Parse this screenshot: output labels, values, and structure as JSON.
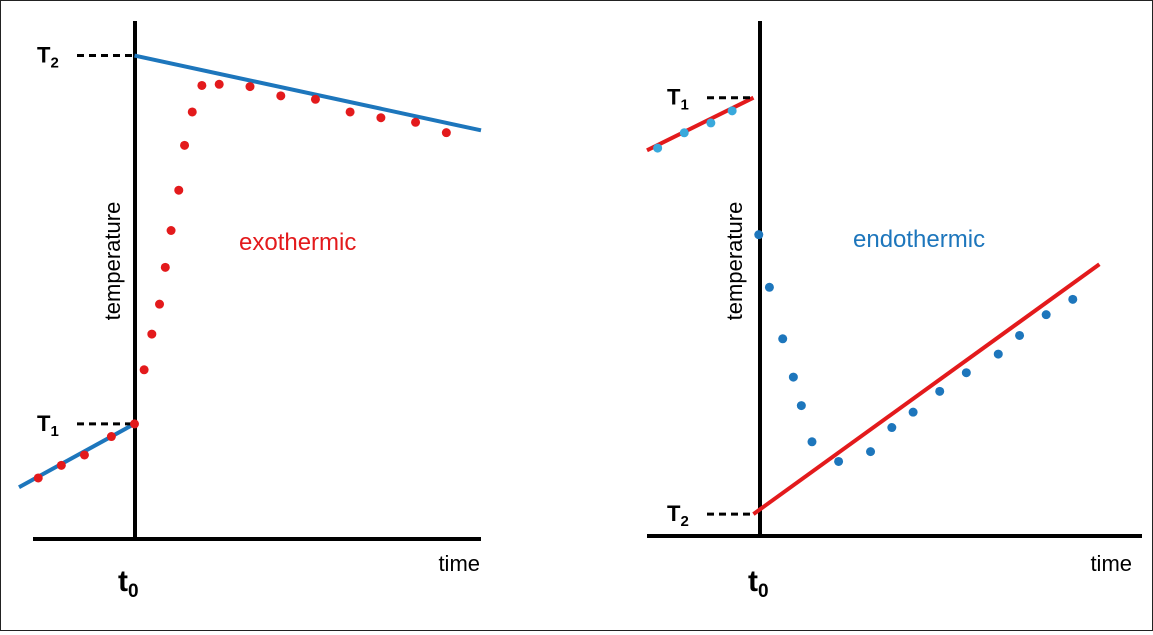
{
  "colors": {
    "blue": "#1d76bc",
    "red": "#e31a1c",
    "light_blue": "#39a9dc"
  },
  "chart_data": [
    {
      "type": "scatter",
      "annotation": "exothermic",
      "annotation_color": "#e31a1c",
      "ylabel": "temperature",
      "xlabel": "time",
      "x_tick_label": {
        "main": "t",
        "sub": "0"
      },
      "xlim": [
        -3,
        9
      ],
      "ylim": [
        -2,
        43
      ],
      "level_labels": [
        {
          "main": "T",
          "sub": "1",
          "y": 8
        },
        {
          "main": "T",
          "sub": "2",
          "y": 40
        }
      ],
      "fit_lines": [
        {
          "color": "#1d76bc",
          "points": [
            [
              -3,
              2.5
            ],
            [
              0,
              8
            ]
          ]
        },
        {
          "color": "#1d76bc",
          "points": [
            [
              0,
              40
            ],
            [
              9,
              33.5
            ]
          ]
        }
      ],
      "points_color": "#e31a1c",
      "points": [
        [
          -2.5,
          3.3
        ],
        [
          -1.9,
          4.4
        ],
        [
          -1.3,
          5.3
        ],
        [
          -0.6,
          6.9
        ],
        [
          0,
          8
        ],
        [
          0.25,
          12.7
        ],
        [
          0.45,
          15.8
        ],
        [
          0.65,
          18.4
        ],
        [
          0.8,
          21.6
        ],
        [
          0.95,
          24.8
        ],
        [
          1.15,
          28.3
        ],
        [
          1.3,
          32.2
        ],
        [
          1.5,
          35.1
        ],
        [
          1.75,
          37.4
        ],
        [
          2.2,
          37.5
        ],
        [
          3.0,
          37.3
        ],
        [
          3.8,
          36.5
        ],
        [
          4.7,
          36.2
        ],
        [
          5.6,
          35.1
        ],
        [
          6.4,
          34.6
        ],
        [
          7.3,
          34.2
        ],
        [
          8.1,
          33.3
        ]
      ]
    },
    {
      "type": "scatter",
      "annotation": "endothermic",
      "annotation_color": "#1d76bc",
      "ylabel": "temperature",
      "xlabel": "time",
      "x_tick_label": {
        "main": "t",
        "sub": "0"
      },
      "xlim": [
        -2,
        7
      ],
      "ylim": [
        -2,
        45
      ],
      "level_labels": [
        {
          "main": "T",
          "sub": "1",
          "y": 38
        },
        {
          "main": "T",
          "sub": "2",
          "y": 0
        }
      ],
      "fit_lines": [
        {
          "color": "#e31a1c",
          "points": [
            [
              -2,
              33.2
            ],
            [
              0,
              38
            ]
          ]
        },
        {
          "color": "#e31a1c",
          "points": [
            [
              0,
              0
            ],
            [
              6.5,
              22.8
            ]
          ]
        }
      ],
      "points_color": "#1d76bc",
      "points": [
        [
          -1.8,
          33.4
        ],
        [
          -1.3,
          34.8
        ],
        [
          -0.8,
          35.7
        ],
        [
          -0.4,
          36.8
        ],
        [
          0.1,
          25.5
        ],
        [
          0.3,
          20.7
        ],
        [
          0.55,
          16
        ],
        [
          0.75,
          12.5
        ],
        [
          0.9,
          9.9
        ],
        [
          1.1,
          6.6
        ],
        [
          1.6,
          4.8
        ],
        [
          2.2,
          5.7
        ],
        [
          2.6,
          7.9
        ],
        [
          3.0,
          9.3
        ],
        [
          3.5,
          11.2
        ],
        [
          4.0,
          12.9
        ],
        [
          4.6,
          14.6
        ],
        [
          5.0,
          16.3
        ],
        [
          5.5,
          18.2
        ],
        [
          6.0,
          19.6
        ]
      ]
    }
  ]
}
